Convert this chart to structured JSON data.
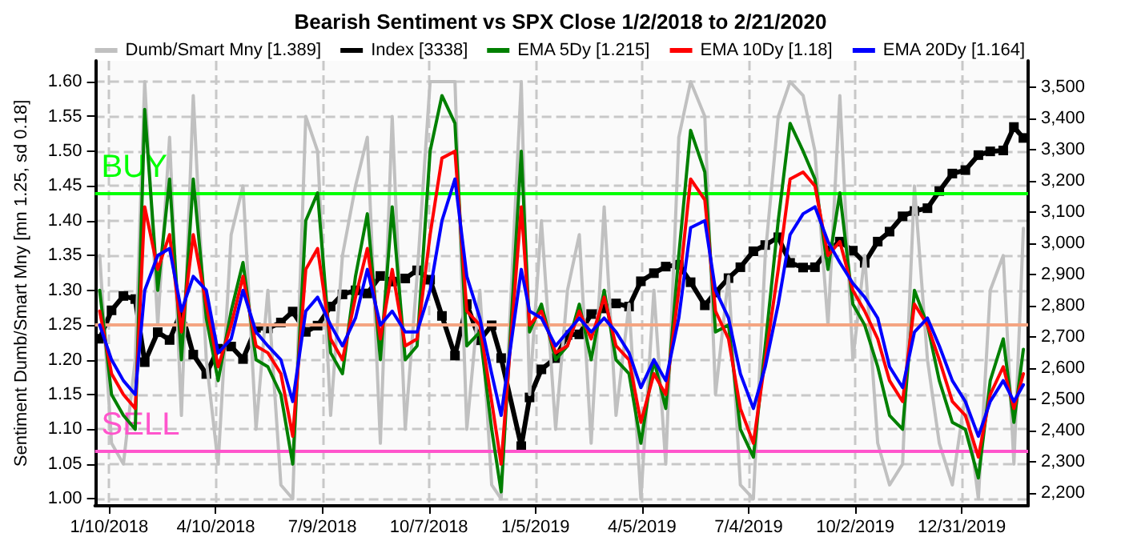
{
  "chart_data": {
    "type": "line",
    "title": "Bearish Sentiment vs SPX Close 1/2/2018 to 2/21/2020",
    "ylabel": "Sentiment Dumb/Smart Mny [mn 1.25, sd 0.18]",
    "x": [
      "2018-01-02",
      "2018-01-12",
      "2018-01-22",
      "2018-02-01",
      "2018-02-09",
      "2018-02-20",
      "2018-03-02",
      "2018-03-12",
      "2018-03-22",
      "2018-04-02",
      "2018-04-12",
      "2018-04-23",
      "2018-05-03",
      "2018-05-14",
      "2018-05-24",
      "2018-06-04",
      "2018-06-14",
      "2018-06-25",
      "2018-07-05",
      "2018-07-16",
      "2018-07-26",
      "2018-08-06",
      "2018-08-16",
      "2018-08-27",
      "2018-09-06",
      "2018-09-17",
      "2018-09-27",
      "2018-10-08",
      "2018-10-18",
      "2018-10-29",
      "2018-11-08",
      "2018-11-19",
      "2018-11-29",
      "2018-12-07",
      "2018-12-24",
      "2018-12-31",
      "2019-01-10",
      "2019-01-22",
      "2019-02-01",
      "2019-02-11",
      "2019-02-21",
      "2019-03-04",
      "2019-03-14",
      "2019-03-25",
      "2019-04-04",
      "2019-04-15",
      "2019-04-25",
      "2019-05-06",
      "2019-05-16",
      "2019-05-28",
      "2019-06-06",
      "2019-06-17",
      "2019-06-27",
      "2019-07-08",
      "2019-07-18",
      "2019-07-29",
      "2019-08-08",
      "2019-08-19",
      "2019-08-29",
      "2019-09-09",
      "2019-09-19",
      "2019-09-30",
      "2019-10-10",
      "2019-10-21",
      "2019-10-31",
      "2019-11-11",
      "2019-11-21",
      "2019-12-02",
      "2019-12-12",
      "2019-12-23",
      "2020-01-03",
      "2020-01-14",
      "2020-01-24",
      "2020-02-04",
      "2020-02-13",
      "2020-02-21"
    ],
    "series": [
      {
        "name": "Dumb/Smart Mny [1.389]",
        "color": "#c0c0c0",
        "marker": "none",
        "values": [
          1.35,
          1.08,
          1.05,
          1.2,
          1.6,
          1.25,
          1.52,
          1.12,
          1.58,
          1.2,
          1.05,
          1.38,
          1.45,
          1.1,
          1.3,
          1.02,
          1.0,
          1.55,
          1.5,
          1.12,
          1.35,
          1.45,
          1.52,
          1.08,
          1.55,
          1.1,
          1.32,
          1.6,
          1.6,
          1.6,
          1.1,
          1.3,
          1.02,
          1.0,
          1.6,
          1.15,
          1.4,
          1.1,
          1.3,
          1.38,
          1.08,
          1.42,
          1.12,
          1.28,
          1.0,
          1.3,
          1.05,
          1.52,
          1.6,
          1.55,
          1.15,
          1.32,
          1.02,
          1.0,
          1.35,
          1.55,
          1.6,
          1.58,
          1.5,
          1.25,
          1.58,
          1.2,
          1.35,
          1.08,
          1.02,
          1.05,
          1.45,
          1.2,
          1.08,
          1.02,
          1.15,
          1.0,
          1.3,
          1.35,
          1.05,
          1.389
        ]
      },
      {
        "name": "Index [3338]",
        "color": "#000000",
        "marker": "square",
        "axis": "y2",
        "values": [
          2695,
          2786,
          2832,
          2822,
          2620,
          2716,
          2691,
          2783,
          2644,
          2582,
          2663,
          2670,
          2630,
          2730,
          2728,
          2747,
          2782,
          2717,
          2737,
          2798,
          2837,
          2850,
          2840,
          2896,
          2878,
          2888,
          2914,
          2884,
          2768,
          2641,
          2806,
          2690,
          2738,
          2633,
          2351,
          2507,
          2597,
          2633,
          2707,
          2709,
          2774,
          2792,
          2808,
          2798,
          2879,
          2905,
          2926,
          2932,
          2876,
          2802,
          2843,
          2889,
          2924,
          2975,
          2995,
          3020,
          2938,
          2923,
          2924,
          2978,
          3006,
          2977,
          2938,
          3006,
          3038,
          3087,
          3104,
          3113,
          3168,
          3224,
          3235,
          3283,
          3295,
          3298,
          3373,
          3338
        ]
      },
      {
        "name": "EMA 5Dy [1.215]",
        "color": "#008000",
        "marker": "none",
        "values": [
          1.3,
          1.15,
          1.12,
          1.1,
          1.56,
          1.3,
          1.46,
          1.2,
          1.46,
          1.26,
          1.17,
          1.27,
          1.34,
          1.2,
          1.19,
          1.15,
          1.05,
          1.4,
          1.44,
          1.21,
          1.18,
          1.32,
          1.41,
          1.2,
          1.42,
          1.2,
          1.22,
          1.5,
          1.58,
          1.54,
          1.22,
          1.24,
          1.1,
          1.01,
          1.5,
          1.24,
          1.28,
          1.2,
          1.22,
          1.28,
          1.2,
          1.3,
          1.2,
          1.18,
          1.08,
          1.2,
          1.13,
          1.35,
          1.53,
          1.47,
          1.24,
          1.25,
          1.1,
          1.06,
          1.22,
          1.4,
          1.54,
          1.5,
          1.46,
          1.33,
          1.44,
          1.28,
          1.25,
          1.19,
          1.12,
          1.1,
          1.3,
          1.25,
          1.17,
          1.11,
          1.1,
          1.03,
          1.17,
          1.23,
          1.11,
          1.215
        ]
      },
      {
        "name": "EMA 10Dy [1.18]",
        "color": "#ff0000",
        "marker": "none",
        "values": [
          1.27,
          1.18,
          1.15,
          1.13,
          1.42,
          1.33,
          1.38,
          1.24,
          1.38,
          1.28,
          1.19,
          1.25,
          1.32,
          1.22,
          1.21,
          1.18,
          1.09,
          1.33,
          1.36,
          1.23,
          1.2,
          1.29,
          1.36,
          1.23,
          1.33,
          1.22,
          1.23,
          1.38,
          1.49,
          1.5,
          1.27,
          1.25,
          1.14,
          1.05,
          1.42,
          1.25,
          1.27,
          1.21,
          1.22,
          1.27,
          1.23,
          1.29,
          1.22,
          1.2,
          1.11,
          1.18,
          1.15,
          1.3,
          1.46,
          1.43,
          1.27,
          1.23,
          1.13,
          1.08,
          1.2,
          1.33,
          1.46,
          1.47,
          1.45,
          1.35,
          1.37,
          1.3,
          1.27,
          1.23,
          1.17,
          1.14,
          1.28,
          1.25,
          1.2,
          1.14,
          1.12,
          1.06,
          1.15,
          1.19,
          1.13,
          1.18
        ]
      },
      {
        "name": "EMA 20Dy [1.164]",
        "color": "#0000ff",
        "marker": "none",
        "values": [
          1.25,
          1.2,
          1.17,
          1.15,
          1.3,
          1.35,
          1.36,
          1.27,
          1.32,
          1.3,
          1.21,
          1.23,
          1.3,
          1.24,
          1.22,
          1.2,
          1.14,
          1.27,
          1.29,
          1.25,
          1.22,
          1.26,
          1.33,
          1.25,
          1.27,
          1.24,
          1.24,
          1.3,
          1.4,
          1.46,
          1.32,
          1.26,
          1.18,
          1.12,
          1.33,
          1.27,
          1.26,
          1.22,
          1.24,
          1.26,
          1.24,
          1.26,
          1.24,
          1.21,
          1.16,
          1.2,
          1.17,
          1.26,
          1.39,
          1.4,
          1.3,
          1.26,
          1.18,
          1.13,
          1.19,
          1.28,
          1.38,
          1.41,
          1.42,
          1.37,
          1.34,
          1.31,
          1.29,
          1.26,
          1.19,
          1.16,
          1.24,
          1.26,
          1.22,
          1.17,
          1.14,
          1.09,
          1.14,
          1.17,
          1.14,
          1.164
        ]
      }
    ],
    "ylim": [
      0.99,
      1.63
    ],
    "yticks": [
      {
        "value": 1.0,
        "label": "1.00"
      },
      {
        "value": 1.05,
        "label": "1.05"
      },
      {
        "value": 1.1,
        "label": "1.10"
      },
      {
        "value": 1.15,
        "label": "1.15"
      },
      {
        "value": 1.2,
        "label": "1.20"
      },
      {
        "value": 1.25,
        "label": "1.25"
      },
      {
        "value": 1.3,
        "label": "1.30"
      },
      {
        "value": 1.35,
        "label": "1.35"
      },
      {
        "value": 1.4,
        "label": "1.40"
      },
      {
        "value": 1.45,
        "label": "1.45"
      },
      {
        "value": 1.5,
        "label": "1.50"
      },
      {
        "value": 1.55,
        "label": "1.55"
      },
      {
        "value": 1.6,
        "label": "1.60"
      }
    ],
    "y2lim": [
      2160,
      3585
    ],
    "y2ticks": [
      {
        "value": 2200,
        "label": "2,200"
      },
      {
        "value": 2300,
        "label": "2,300"
      },
      {
        "value": 2400,
        "label": "2,400"
      },
      {
        "value": 2500,
        "label": "2,500"
      },
      {
        "value": 2600,
        "label": "2,600"
      },
      {
        "value": 2700,
        "label": "2,700"
      },
      {
        "value": 2800,
        "label": "2,800"
      },
      {
        "value": 2900,
        "label": "2,900"
      },
      {
        "value": 3000,
        "label": "3,000"
      },
      {
        "value": 3100,
        "label": "3,100"
      },
      {
        "value": 3200,
        "label": "3,200"
      },
      {
        "value": 3300,
        "label": "3,300"
      },
      {
        "value": 3400,
        "label": "3,400"
      },
      {
        "value": 3500,
        "label": "3,500"
      }
    ],
    "xlim": [
      "2017-12-29",
      "2020-02-25"
    ],
    "xticks": [
      {
        "value": "2018-01-10",
        "label": "1/10/2018"
      },
      {
        "value": "2018-04-10",
        "label": "4/10/2018"
      },
      {
        "value": "2018-07-09",
        "label": "7/9/2018"
      },
      {
        "value": "2018-10-07",
        "label": "10/7/2018"
      },
      {
        "value": "2019-01-05",
        "label": "1/5/2019"
      },
      {
        "value": "2019-04-05",
        "label": "4/5/2019"
      },
      {
        "value": "2019-07-04",
        "label": "7/4/2019"
      },
      {
        "value": "2019-10-02",
        "label": "10/2/2019"
      },
      {
        "value": "2019-12-31",
        "label": "12/31/2019"
      }
    ],
    "ref_lines": [
      {
        "axis": "y",
        "value": 1.44,
        "label": "BUY",
        "color": "#00ff00"
      },
      {
        "axis": "y",
        "value": 1.25,
        "label": null,
        "color": "#f4a582"
      },
      {
        "axis": "y",
        "value": 1.07,
        "label": "SELL",
        "color": "#ff55cc"
      }
    ],
    "grid": true,
    "legend": "top",
    "line_style": "solid"
  }
}
